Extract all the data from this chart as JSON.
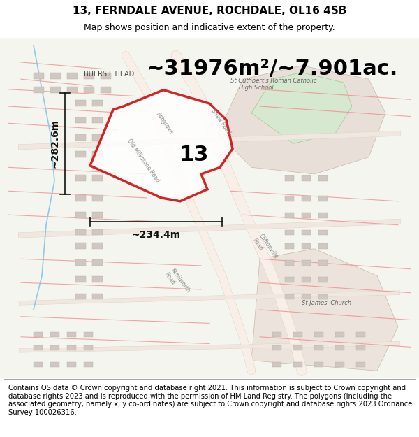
{
  "title": "13, FERNDALE AVENUE, ROCHDALE, OL16 4SB",
  "subtitle": "Map shows position and indicative extent of the property.",
  "area_text": "~31976m²/~7.901ac.",
  "label_number": "13",
  "dim_vertical": "~282.6m",
  "dim_horizontal": "~234.4m",
  "footer": "Contains OS data © Crown copyright and database right 2021. This information is subject to Crown copyright and database rights 2023 and is reproduced with the permission of HM Land Registry. The polygons (including the associated geometry, namely x, y co-ordinates) are subject to Crown copyright and database rights 2023 Ordnance Survey 100026316.",
  "map_bg": "#f5f5f0",
  "map_light_area": "#e8e0d8",
  "map_green_area": "#d6e8d0",
  "plot_edge": "#cc0000",
  "plot_lw": 2.5,
  "dim_color": "#111111",
  "area_fontsize": 22,
  "label_fontsize": 22,
  "title_fontsize": 11,
  "subtitle_fontsize": 9,
  "footer_fontsize": 7.2
}
